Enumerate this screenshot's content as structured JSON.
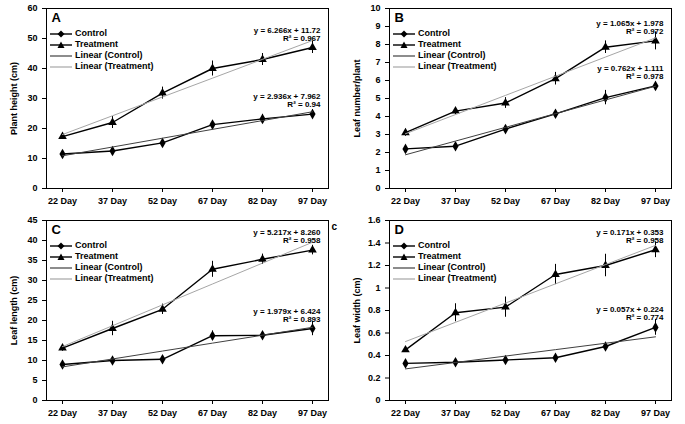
{
  "chart_data": [
    {
      "type": "line",
      "title": "A",
      "y_label": "Plant height (cm)",
      "x": [
        "22 Day",
        "37 Day",
        "52 Day",
        "67 Day",
        "82 Day",
        "97 Day"
      ],
      "ylim": [
        0,
        60
      ],
      "yticks": [
        0,
        10,
        20,
        30,
        40,
        50,
        60
      ],
      "grid": false,
      "legend": "upper left",
      "series": [
        {
          "name": "Control",
          "color": "#000000",
          "marker": "diamond",
          "line_style": "solid",
          "values": [
            11.5,
            12.5,
            15.2,
            21.3,
            23.2,
            24.8
          ],
          "errors": [
            0.8,
            0.8,
            0.8,
            0.8,
            1.5,
            1.5
          ]
        },
        {
          "name": "Treatment",
          "color": "#000000",
          "marker": "triangle",
          "line_style": "solid",
          "values": [
            17.3,
            22.0,
            31.8,
            40.0,
            43.0,
            47.0
          ],
          "errors": [
            0.8,
            2.0,
            2.0,
            2.5,
            2.0,
            2.0
          ]
        },
        {
          "name": "Linear (Control)",
          "color": "#404040",
          "marker": "none",
          "line_style": "solid",
          "values": [
            10.9,
            13.83,
            16.77,
            19.71,
            22.64,
            25.58
          ]
        },
        {
          "name": "Linear (Treatment)",
          "color": "#a6a6a6",
          "marker": "none",
          "line_style": "solid",
          "values": [
            17.99,
            24.25,
            30.52,
            36.78,
            43.05,
            49.32
          ]
        }
      ],
      "annotations": [
        {
          "series": "Treatment",
          "lines": [
            "y = 6.266x + 11.72",
            "R² = 0.967"
          ]
        },
        {
          "series": "Control",
          "lines": [
            "y = 2.936x + 7.962",
            "R² = 0.94"
          ]
        }
      ]
    },
    {
      "type": "line",
      "title": "B",
      "y_label": "Leaf number/plant",
      "x": [
        "22 Day",
        "37 Day",
        "52 Day",
        "67 Day",
        "82 Day",
        "97 Day"
      ],
      "ylim": [
        0,
        10
      ],
      "yticks": [
        0,
        1,
        2,
        3,
        4,
        5,
        6,
        7,
        8,
        9,
        10
      ],
      "grid": false,
      "legend": "upper left",
      "series": [
        {
          "name": "Control",
          "color": "#000000",
          "marker": "diamond",
          "line_style": "solid",
          "values": [
            2.2,
            2.35,
            3.3,
            4.15,
            5.05,
            5.7
          ],
          "errors": [
            0.1,
            0.1,
            0.1,
            0.2,
            0.4,
            0.2
          ]
        },
        {
          "name": "Treatment",
          "color": "#000000",
          "marker": "triangle",
          "line_style": "solid",
          "values": [
            3.1,
            4.3,
            4.75,
            6.1,
            7.85,
            8.2
          ],
          "errors": [
            0.2,
            0.2,
            0.3,
            0.35,
            0.35,
            0.5
          ]
        },
        {
          "name": "Linear (Control)",
          "color": "#404040",
          "marker": "none",
          "line_style": "solid",
          "values": [
            1.873,
            2.635,
            3.397,
            4.159,
            4.921,
            5.683
          ]
        },
        {
          "name": "Linear (Treatment)",
          "color": "#a6a6a6",
          "marker": "none",
          "line_style": "solid",
          "values": [
            3.043,
            4.108,
            5.173,
            6.238,
            7.303,
            8.368
          ]
        }
      ],
      "annotations": [
        {
          "series": "Treatment",
          "lines": [
            "y = 1.065x + 1.978",
            "R² = 0.972"
          ]
        },
        {
          "series": "Control",
          "lines": [
            "y = 0.762x + 1.111",
            "R² = 0.978"
          ]
        }
      ]
    },
    {
      "type": "line",
      "title": "C",
      "y_label": "Leaf length (cm)",
      "x": [
        "22 Day",
        "37 Day",
        "52 Day",
        "67 Day",
        "82 Day",
        "97 Day"
      ],
      "ylim": [
        0,
        45
      ],
      "yticks": [
        0,
        5,
        10,
        15,
        20,
        25,
        30,
        35,
        40,
        45
      ],
      "grid": false,
      "legend": "upper left",
      "series": [
        {
          "name": "Control",
          "color": "#000000",
          "marker": "diamond",
          "line_style": "solid",
          "values": [
            9.0,
            10.0,
            10.3,
            16.2,
            16.3,
            18.0
          ],
          "errors": [
            0.8,
            1.0,
            0.5,
            1.2,
            0.4,
            1.8
          ]
        },
        {
          "name": "Treatment",
          "color": "#000000",
          "marker": "triangle",
          "line_style": "solid",
          "values": [
            13.1,
            18.0,
            22.8,
            32.8,
            35.3,
            37.6
          ],
          "errors": [
            0.8,
            1.8,
            1.3,
            2.0,
            1.3,
            1.2
          ]
        },
        {
          "name": "Linear (Control)",
          "color": "#404040",
          "marker": "none",
          "line_style": "solid",
          "values": [
            8.403,
            10.382,
            12.361,
            14.34,
            16.319,
            18.298
          ]
        },
        {
          "name": "Linear (Treatment)",
          "color": "#a6a6a6",
          "marker": "none",
          "line_style": "solid",
          "values": [
            13.477,
            18.694,
            23.911,
            29.128,
            34.345,
            39.562
          ]
        }
      ],
      "annotations": [
        {
          "series": "Treatment",
          "lines": [
            "y = 5.217x + 8.260",
            "R² = 0.958"
          ]
        },
        {
          "series": "Control",
          "lines": [
            "y = 1.979x + 6.424",
            "R² = 0.893"
          ]
        },
        {
          "lines": [
            "c"
          ]
        }
      ]
    },
    {
      "type": "line",
      "title": "D",
      "y_label": "Leaf width (cm)",
      "x": [
        "22 Day",
        "37 Day",
        "52 Day",
        "67 Day",
        "82 Day",
        "97 Day"
      ],
      "ylim": [
        0,
        1.6
      ],
      "yticks": [
        0,
        0.2,
        0.4,
        0.6,
        0.8,
        1,
        1.2,
        1.4,
        1.6
      ],
      "grid": false,
      "legend": "upper left",
      "series": [
        {
          "name": "Control",
          "color": "#000000",
          "marker": "diamond",
          "line_style": "solid",
          "values": [
            0.33,
            0.34,
            0.36,
            0.38,
            0.48,
            0.65
          ],
          "errors": [
            0.02,
            0.03,
            0.03,
            0.02,
            0.03,
            0.07
          ]
        },
        {
          "name": "Treatment",
          "color": "#000000",
          "marker": "triangle",
          "line_style": "solid",
          "values": [
            0.45,
            0.78,
            0.83,
            1.12,
            1.2,
            1.34
          ],
          "errors": [
            0.02,
            0.08,
            0.09,
            0.09,
            0.1,
            0.07
          ]
        },
        {
          "name": "Linear (Control)",
          "color": "#404040",
          "marker": "none",
          "line_style": "solid",
          "values": [
            0.281,
            0.338,
            0.395,
            0.452,
            0.509,
            0.566
          ]
        },
        {
          "name": "Linear (Treatment)",
          "color": "#a6a6a6",
          "marker": "none",
          "line_style": "solid",
          "values": [
            0.524,
            0.695,
            0.866,
            1.037,
            1.208,
            1.379
          ]
        }
      ],
      "annotations": [
        {
          "series": "Treatment",
          "lines": [
            "y = 0.171x + 0.353",
            "R² = 0.958"
          ]
        },
        {
          "series": "Control",
          "lines": [
            "y = 0.057x + 0.224",
            "R² = 0.774"
          ]
        }
      ]
    }
  ]
}
